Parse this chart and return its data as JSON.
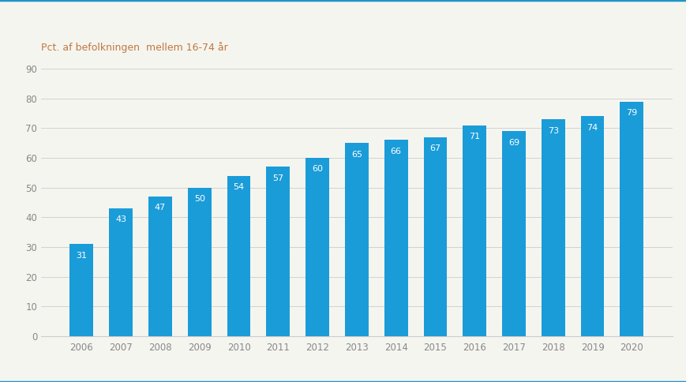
{
  "years": [
    2006,
    2007,
    2008,
    2009,
    2010,
    2011,
    2012,
    2013,
    2014,
    2015,
    2016,
    2017,
    2018,
    2019,
    2020
  ],
  "values": [
    31,
    43,
    47,
    50,
    54,
    57,
    60,
    65,
    66,
    67,
    71,
    69,
    73,
    74,
    79
  ],
  "bar_color": "#1a9cd8",
  "label_color": "#ffffff",
  "ylabel": "Pct. af befolkningen  mellem 16-74 år",
  "ylim": [
    0,
    90
  ],
  "yticks": [
    0,
    10,
    20,
    30,
    40,
    50,
    60,
    70,
    80,
    90
  ],
  "background_color": "#f5f5f0",
  "plot_bg_color": "#f5f5f0",
  "grid_color": "#cccccc",
  "border_color": "#2196c8",
  "ylabel_color": "#c07840",
  "ylabel_fontsize": 9,
  "label_fontsize": 8,
  "tick_fontsize": 8.5,
  "tick_color": "#888888",
  "bar_width": 0.6
}
